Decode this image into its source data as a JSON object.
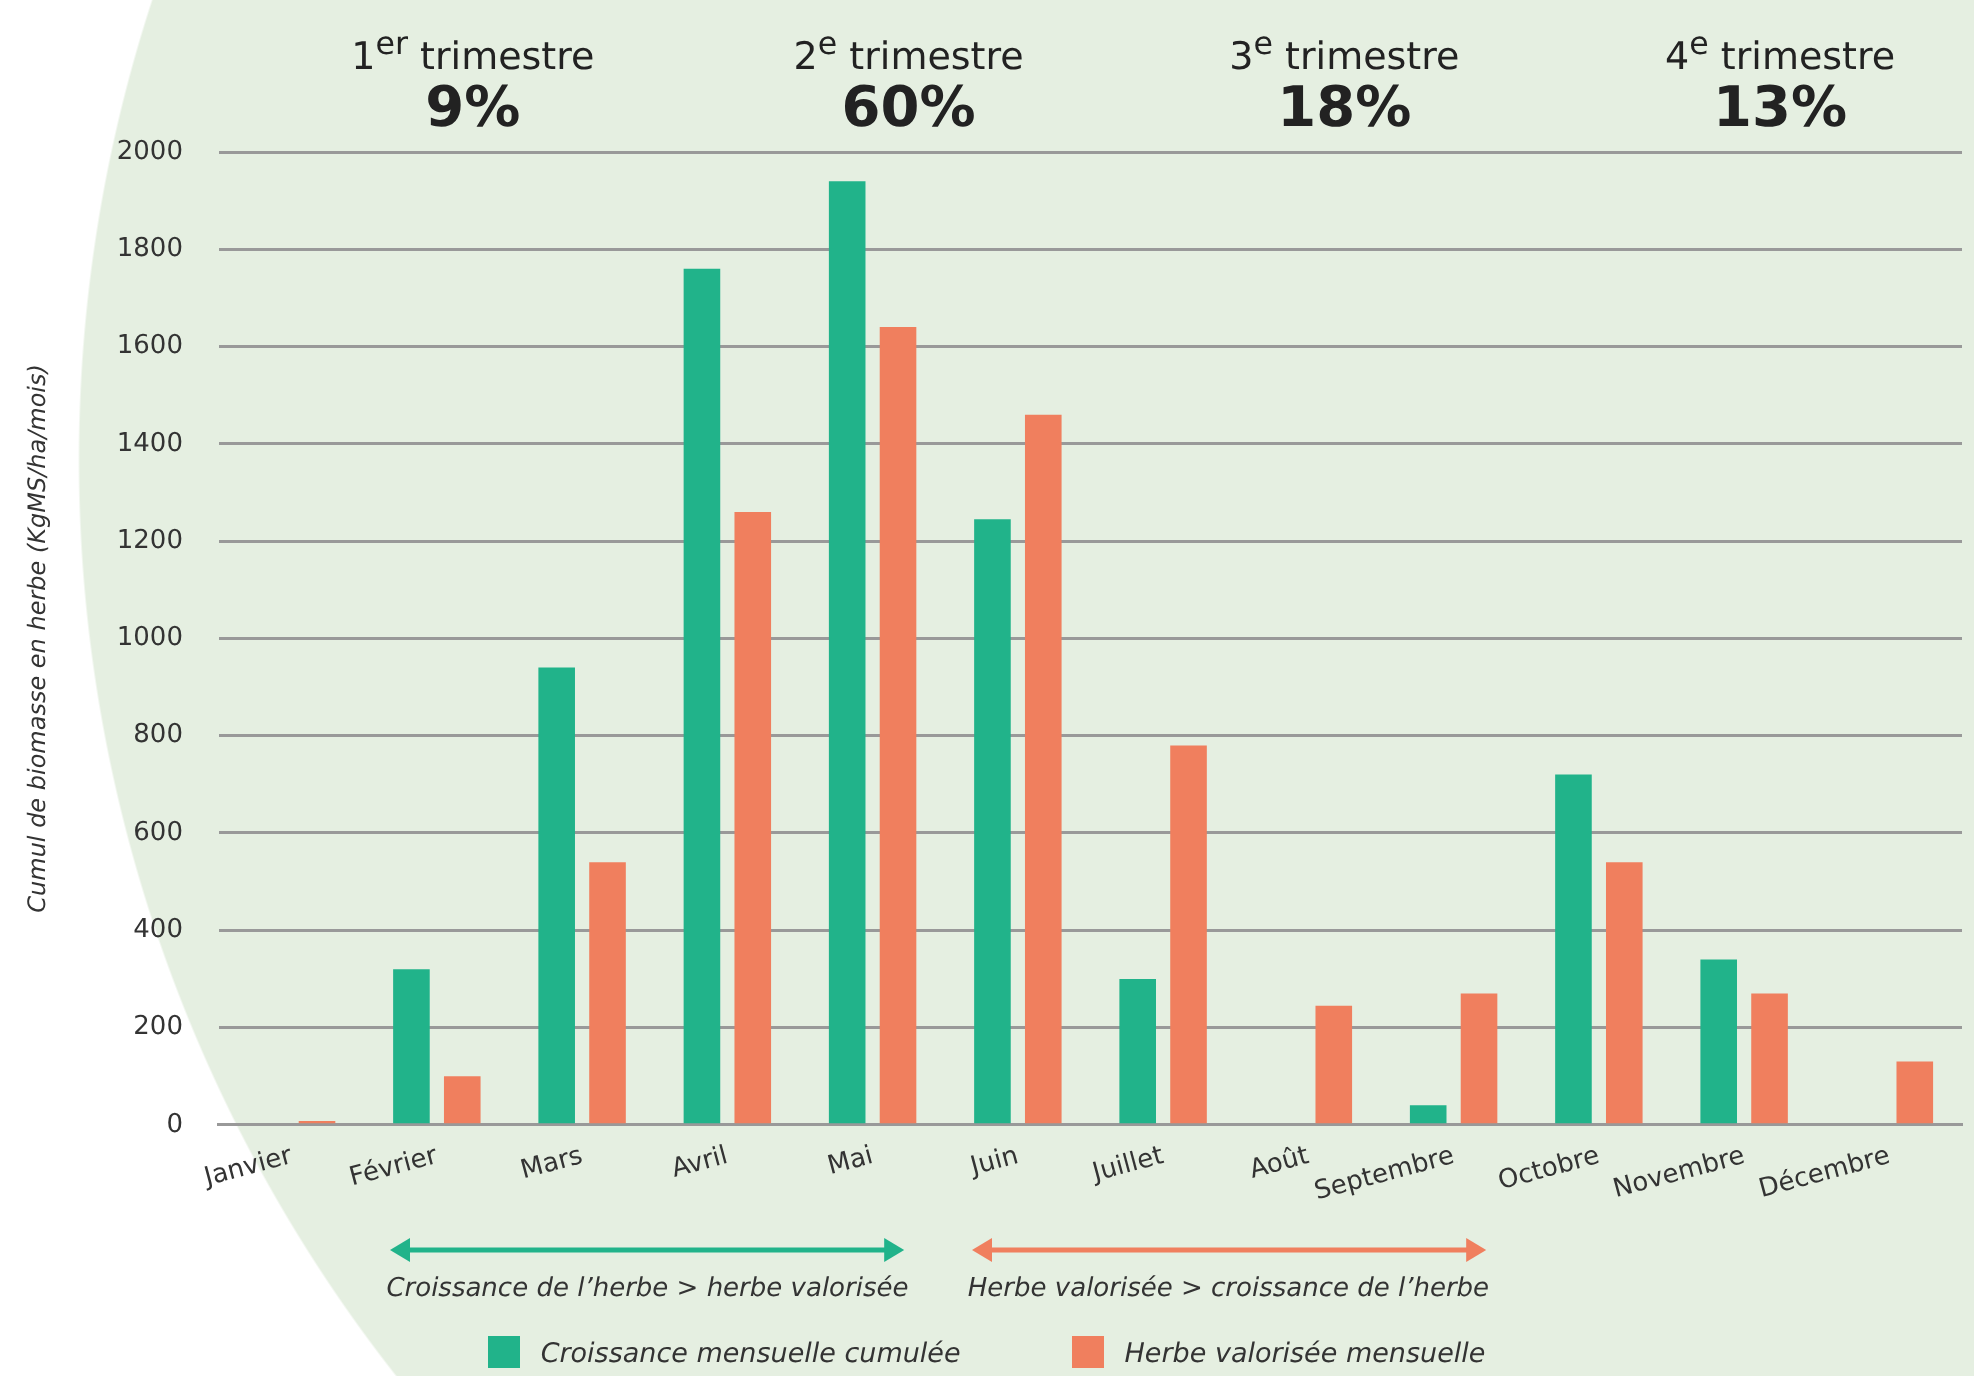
{
  "chart_data": {
    "type": "bar",
    "ylabel": "Cumul de biomasse en herbe (KgMS/ha/mois)",
    "categories": [
      "Janvier",
      "Février",
      "Mars",
      "Avril",
      "Mai",
      "Juin",
      "Juillet",
      "Août",
      "Septembre",
      "Octobre",
      "Novembre",
      "Décembre"
    ],
    "series": [
      {
        "name": "Croissance mensuelle cumulée",
        "color": "#21b38a",
        "values": [
          null,
          320,
          940,
          1760,
          1940,
          1245,
          300,
          0,
          40,
          720,
          340,
          null
        ]
      },
      {
        "name": "Herbe valorisée mensuelle",
        "color": "#f07f5e",
        "values": [
          8,
          100,
          540,
          1260,
          1640,
          1460,
          780,
          245,
          270,
          540,
          270,
          130
        ]
      }
    ],
    "ylim": [
      0,
      2000
    ],
    "yticks": [
      0,
      200,
      400,
      600,
      800,
      1000,
      1200,
      1400,
      1600,
      1800,
      2000
    ],
    "grid": "y",
    "legend": "bottom",
    "annotations": [
      "1$^{er}$ trimestre",
      "9%",
      "2$^{e}$ trimestre",
      "60%",
      "3$^{e}$ trimestre",
      "18%",
      "4$^{e}$ trimestre",
      "13%",
      "Croissance de l’herbe > herbe valorisée",
      "Herbe valorisée > croissance de l’herbe"
    ]
  }
}
